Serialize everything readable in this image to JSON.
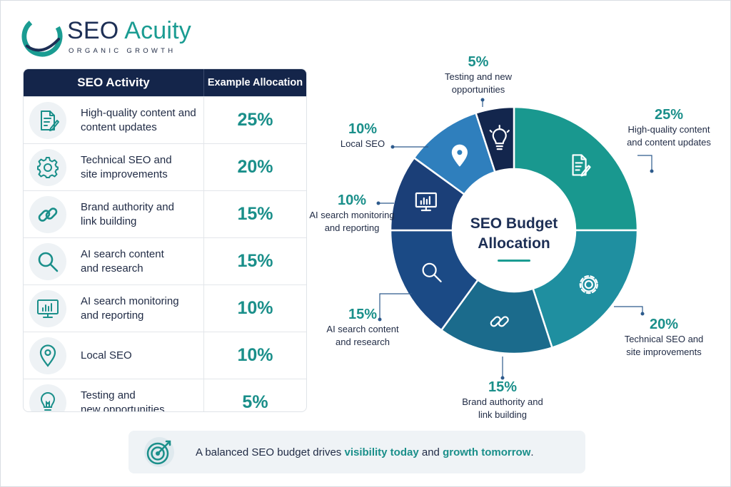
{
  "brand": {
    "name_first": "SEO",
    "name_second": "Acuity",
    "tagline": "ORGANIC GROWTH"
  },
  "table": {
    "headers": [
      "SEO Activity",
      "Example Allocation"
    ],
    "rows": [
      {
        "line1": "High-quality content and",
        "line2": "content updates",
        "value": "25%",
        "icon": "document-edit-icon"
      },
      {
        "line1": "Technical SEO and",
        "line2": "site improvements",
        "value": "20%",
        "icon": "gear-icon"
      },
      {
        "line1": "Brand authority and",
        "line2": "link building",
        "value": "15%",
        "icon": "chain-link-icon"
      },
      {
        "line1": "AI search content",
        "line2": "and research",
        "value": "15%",
        "icon": "magnifier-icon"
      },
      {
        "line1": "AI search monitoring",
        "line2": "and reporting",
        "value": "10%",
        "icon": "monitor-chart-icon"
      },
      {
        "line1": "Local SEO",
        "line2": "",
        "value": "10%",
        "icon": "map-pin-icon"
      },
      {
        "line1": "Testing and",
        "line2": "new opportunities",
        "value": "5%",
        "icon": "lightbulb-icon"
      }
    ]
  },
  "chart_data": {
    "type": "pie",
    "title": "SEO Budget Allocation",
    "categories": [
      "High-quality content and content updates",
      "Technical SEO and site improvements",
      "Brand authority and link building",
      "AI search content and research",
      "AI search monitoring and reporting",
      "Local SEO",
      "Testing and new opportunities"
    ],
    "values": [
      25,
      20,
      15,
      15,
      10,
      10,
      5
    ],
    "unit": "%",
    "donut": true,
    "colors": [
      "#19988f",
      "#1f8fa0",
      "#1b6b8c",
      "#1b4a85",
      "#1b3f78",
      "#2f7fbd",
      "#13264d"
    ],
    "labels": [
      {
        "pct": "25%",
        "lines": [
          "High-quality content",
          "and content updates"
        ]
      },
      {
        "pct": "20%",
        "lines": [
          "Technical SEO and",
          "site improvements"
        ]
      },
      {
        "pct": "15%",
        "lines": [
          "Brand authority and",
          "link building"
        ]
      },
      {
        "pct": "15%",
        "lines": [
          "AI search content",
          "and research"
        ]
      },
      {
        "pct": "10%",
        "lines": [
          "AI search monitoring",
          "and reporting"
        ]
      },
      {
        "pct": "10%",
        "lines": [
          "Local SEO"
        ]
      },
      {
        "pct": "5%",
        "lines": [
          "Testing and new",
          "opportunities"
        ]
      }
    ]
  },
  "banner": {
    "pre": "A balanced SEO budget drives ",
    "hl1": "visibility today",
    "mid": " and ",
    "hl2": "growth tomorrow",
    "post": "."
  },
  "colors": {
    "navy": "#14254a",
    "teal": "#1a9c92",
    "accent_text": "#1a8f8a"
  }
}
